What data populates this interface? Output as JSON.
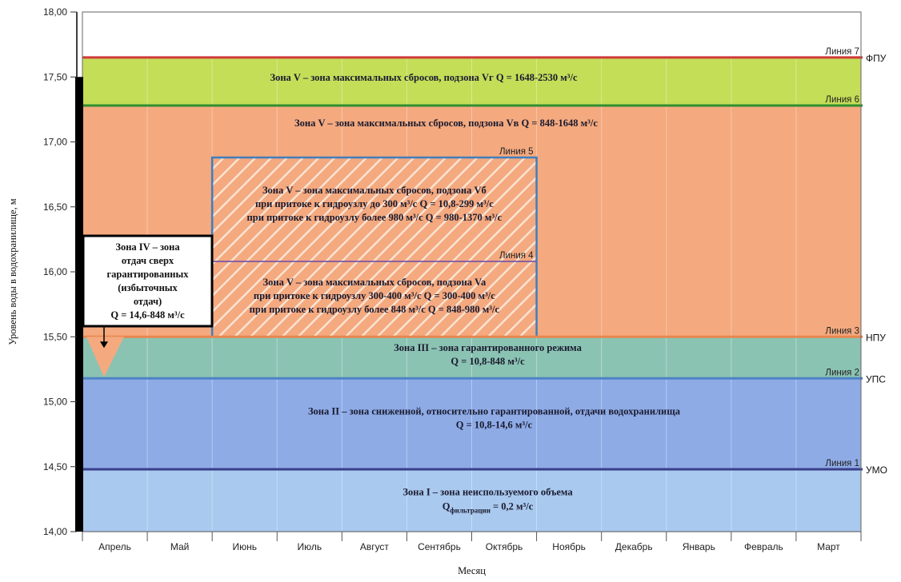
{
  "chart_data": {
    "type": "area",
    "xlabel": "Месяц",
    "ylabel": "Уровень воды в водохранилище, м",
    "ylim": [
      14.0,
      18.0
    ],
    "y_ticks": [
      "14,00",
      "14,50",
      "15,00",
      "15,50",
      "16,00",
      "16,50",
      "17,00",
      "17,50",
      "18,00"
    ],
    "y_tick_values": [
      14.0,
      14.5,
      15.0,
      15.5,
      16.0,
      16.5,
      17.0,
      17.5,
      18.0
    ],
    "months": [
      "Апрель",
      "Май",
      "Июнь",
      "Июль",
      "Август",
      "Сентябрь",
      "Октябрь",
      "Ноябрь",
      "Декабрь",
      "Январь",
      "Февраль",
      "Март"
    ],
    "grid": true,
    "lines": [
      {
        "name": "Линия 1",
        "level": 14.48,
        "right_label": "УМО",
        "color": "#3a3f8a"
      },
      {
        "name": "Линия 2",
        "level": 15.18,
        "right_label": "УПС",
        "color": "#4e83c4"
      },
      {
        "name": "Линия 3",
        "level": 15.5,
        "right_label": "НПУ",
        "color": "#e8874e"
      },
      {
        "name": "Линия 4",
        "level": 16.08,
        "right_label": "",
        "color": "#7a58a8"
      },
      {
        "name": "Линия 5",
        "level": 16.88,
        "right_label": "",
        "color": "#3d7fbf"
      },
      {
        "name": "Линия 6",
        "level": 17.28,
        "right_label": "",
        "color": "#2f8f2f"
      },
      {
        "name": "Линия 7",
        "level": 17.65,
        "right_label": "ФПУ",
        "color": "#d0393a"
      }
    ],
    "zones": [
      {
        "id": "I",
        "from": 14.0,
        "to": 14.48,
        "color": "#a9c9ef",
        "text": [
          "Зона I – зона неиспользуемого объема",
          "Qфильтрации = 0,2 м³/с"
        ]
      },
      {
        "id": "II",
        "from": 14.48,
        "to": 15.18,
        "color": "#8eabe6",
        "text": [
          "Зона II – зона сниженной, относительно гарантированной, отдачи водохранилища",
          "Q = 10,8-14,6 м³/с"
        ]
      },
      {
        "id": "III",
        "from": 15.18,
        "to": 15.5,
        "color": "#8bc3b3",
        "text": [
          "Зона III – зона гарантированного режима",
          "Q = 10,8-848 м³/с"
        ]
      },
      {
        "id": "Vв",
        "from": 15.5,
        "to": 17.28,
        "color": "#f4a97f",
        "text": [
          "Зона V – зона максимальных сбросов, подзона Vв Q = 848-1648 м³/с"
        ]
      },
      {
        "id": "Vг",
        "from": 17.28,
        "to": 17.65,
        "color": "#c4de58",
        "text": [
          "Зона V – зона максимальных сбросов, подзона Vг Q = 1648-2530 м³/с"
        ]
      }
    ],
    "subzones": [
      {
        "id": "Va",
        "from": 15.5,
        "to": 16.08,
        "months": [
          2,
          7
        ],
        "text": [
          "Зона V – зона максимальных сбросов, подзона Va",
          "при притоке к гидроузлу 300-400 м³/с Q = 300-400 м³/с",
          "при притоке к гидроузлу более 848 м³/с Q = 848-980 м³/с"
        ]
      },
      {
        "id": "Vб",
        "from": 16.08,
        "to": 16.88,
        "months": [
          2,
          7
        ],
        "text": [
          "Зона V – зона максимальных сбросов, подзона Vб",
          "при притоке к гидроузлу до 300 м³/с Q = 10,8-299 м³/с",
          "при притоке к гидроузлу более 980 м³/с Q = 980-1370 м³/с"
        ]
      }
    ],
    "callout": {
      "text": [
        "Зона IV – зона",
        "отдач сверх",
        "гарантированных",
        "(избыточных",
        "отдач)",
        "Q = 14,6-848 м³/с"
      ],
      "zone_color": "#f4a97f"
    }
  }
}
